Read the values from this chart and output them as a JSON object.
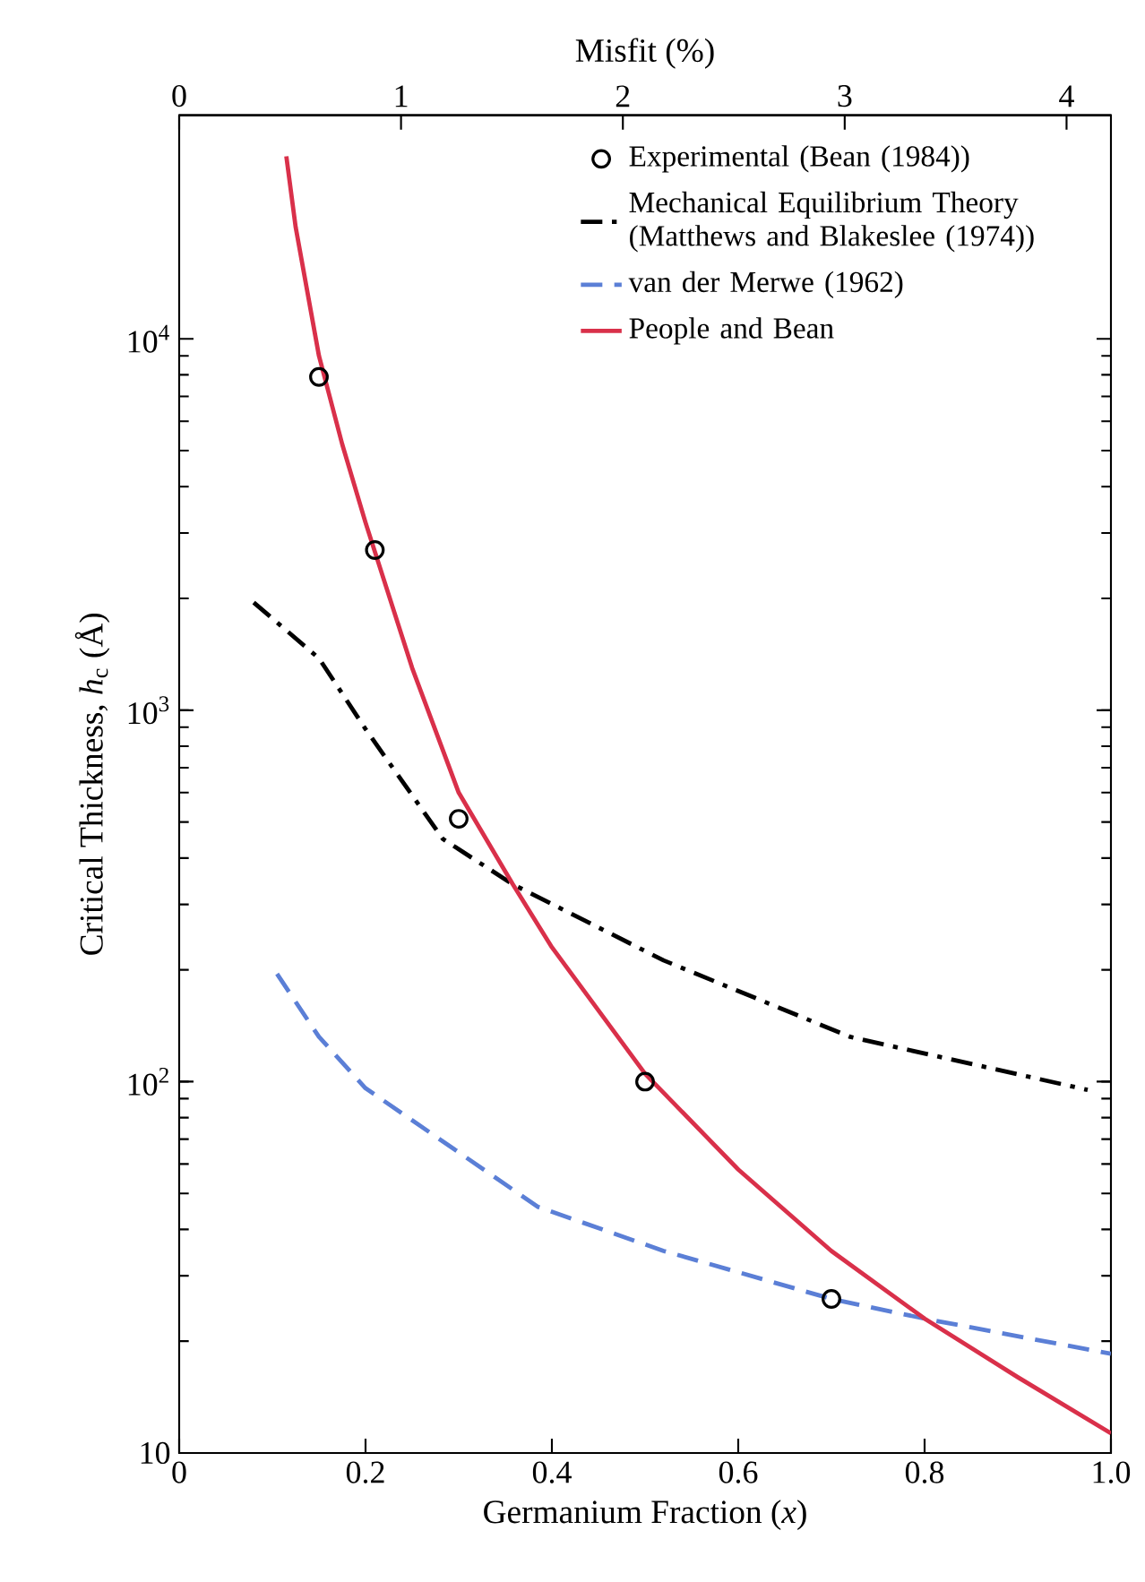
{
  "chart_data": {
    "type": "line",
    "xlabel": "Germanium Fraction (*x*)",
    "ylabel": "Critical Thickness, *h*$_{c}$ (Å)",
    "x2label": "Misfit (%)",
    "xlim": [
      0,
      1
    ],
    "xticks": [
      0,
      0.2,
      0.4,
      0.6,
      0.8,
      {
        "value": 1,
        "label": "1.0"
      }
    ],
    "x2lim": [
      0,
      4.2
    ],
    "x2ticks": [
      0,
      1,
      2,
      3,
      4
    ],
    "ylim": [
      10,
      40000
    ],
    "yticks": [
      10,
      {
        "value": 100,
        "label": "10$^{2}$"
      },
      {
        "value": 1000,
        "label": "10$^{3}$"
      },
      {
        "value": 10000,
        "label": "10$^{4}$"
      }
    ],
    "log": "y",
    "grid": false,
    "legend": "top right",
    "series": [
      {
        "name": "Experimental (Bean (1984))",
        "type": "scatter",
        "marker": "circle",
        "color": "#000000",
        "x": [
          0.15,
          0.21,
          0.3,
          0.5,
          0.7
        ],
        "values": [
          7900,
          2700,
          510,
          100,
          26
        ]
      },
      {
        "name": "Mechanical Equilibrium Theory (Matthews and Blakeslee (1974))",
        "type": "line",
        "line_style": "dashdot",
        "color": "#000000",
        "x": [
          0.08,
          0.15,
          0.2,
          0.283,
          0.358,
          0.52,
          0.72,
          0.975
        ],
        "values": [
          1950,
          1380,
          890,
          450,
          340,
          212,
          132,
          95
        ]
      },
      {
        "name": "van der Merwe (1962)",
        "type": "line",
        "line_style": "dashed",
        "color": "#5b7fd6",
        "x": [
          0.105,
          0.15,
          0.2,
          0.385,
          0.52,
          0.7,
          0.8,
          1.0
        ],
        "values": [
          195,
          132,
          96,
          46,
          35,
          26,
          23,
          18.5
        ]
      },
      {
        "name": "People and Bean",
        "type": "line",
        "line_style": "solid",
        "color": "#d9304a",
        "x": [
          0.115,
          0.125,
          0.15,
          0.175,
          0.2,
          0.25,
          0.3,
          0.358,
          0.4,
          0.5,
          0.6,
          0.7,
          0.8,
          0.9,
          1.0
        ],
        "values": [
          31000,
          20000,
          9000,
          5200,
          3200,
          1300,
          600,
          340,
          230,
          105,
          58,
          35,
          23,
          16,
          11.3
        ]
      }
    ]
  }
}
